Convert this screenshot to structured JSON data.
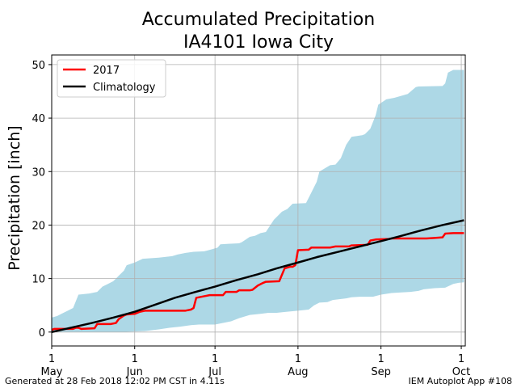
{
  "chart_data": {
    "type": "area",
    "title_line1": "Accumulated Precipitation",
    "title_line2": "IA4101 Iowa City",
    "ylabel": "Precipitation [inch]",
    "xlabel": "",
    "x_ticks": [
      {
        "day": 0,
        "day_label": "1",
        "month_label": "May"
      },
      {
        "day": 31,
        "day_label": "1",
        "month_label": "Jun"
      },
      {
        "day": 61,
        "day_label": "1",
        "month_label": "Jul"
      },
      {
        "day": 92,
        "day_label": "1",
        "month_label": "Aug"
      },
      {
        "day": 123,
        "day_label": "1",
        "month_label": "Sep"
      },
      {
        "day": 153,
        "day_label": "1",
        "month_label": "Oct"
      }
    ],
    "xlim": [
      0,
      154.5
    ],
    "ylim": [
      -2.6,
      51.8
    ],
    "y_ticks": [
      0,
      10,
      20,
      30,
      40,
      50
    ],
    "grid": true,
    "legend_position": "top-left",
    "series": [
      {
        "name": "2017",
        "color": "#ff0000",
        "points": [
          [
            0,
            0.4
          ],
          [
            1,
            0.6
          ],
          [
            8,
            0.6
          ],
          [
            9,
            0.8
          ],
          [
            10,
            0.8
          ],
          [
            11,
            0.6
          ],
          [
            16,
            0.7
          ],
          [
            17,
            1.5
          ],
          [
            22,
            1.5
          ],
          [
            24,
            1.7
          ],
          [
            25,
            2.4
          ],
          [
            27,
            3.1
          ],
          [
            28,
            3.3
          ],
          [
            31,
            3.4
          ],
          [
            33,
            3.8
          ],
          [
            35,
            4.0
          ],
          [
            40,
            4.0
          ],
          [
            45,
            4.0
          ],
          [
            50,
            4.0
          ],
          [
            52,
            4.2
          ],
          [
            46,
            4.0
          ],
          [
            53,
            4.5
          ],
          [
            54,
            6.4
          ],
          [
            57,
            6.7
          ],
          [
            59,
            6.9
          ],
          [
            64,
            6.9
          ],
          [
            65,
            7.5
          ],
          [
            69,
            7.5
          ],
          [
            70,
            7.8
          ],
          [
            74,
            7.8
          ],
          [
            75,
            7.9
          ],
          [
            77,
            8.7
          ],
          [
            79,
            9.2
          ],
          [
            80,
            9.4
          ],
          [
            85,
            9.5
          ],
          [
            87,
            11.9
          ],
          [
            89,
            12.2
          ],
          [
            90,
            12.2
          ],
          [
            91,
            12.5
          ],
          [
            92,
            15.3
          ],
          [
            96,
            15.4
          ],
          [
            97,
            15.8
          ],
          [
            104,
            15.8
          ],
          [
            106,
            16.0
          ],
          [
            111,
            16.0
          ],
          [
            112,
            16.2
          ],
          [
            118,
            16.3
          ],
          [
            119,
            17.1
          ],
          [
            121,
            17.3
          ],
          [
            126,
            17.4
          ],
          [
            127,
            17.5
          ],
          [
            140,
            17.5
          ],
          [
            143,
            17.6
          ],
          [
            146,
            17.7
          ],
          [
            147,
            18.4
          ],
          [
            150,
            18.5
          ],
          [
            154,
            18.5
          ]
        ]
      },
      {
        "name": "Climatology",
        "color": "#000000",
        "points": [
          [
            0,
            0.0
          ],
          [
            8,
            0.9
          ],
          [
            15,
            1.7
          ],
          [
            23,
            2.7
          ],
          [
            31,
            3.8
          ],
          [
            38,
            5.0
          ],
          [
            46,
            6.4
          ],
          [
            53,
            7.4
          ],
          [
            61,
            8.5
          ],
          [
            69,
            9.7
          ],
          [
            77,
            10.8
          ],
          [
            84,
            11.9
          ],
          [
            92,
            13.0
          ],
          [
            99,
            14.0
          ],
          [
            107,
            15.0
          ],
          [
            115,
            16.0
          ],
          [
            123,
            17.0
          ],
          [
            130,
            17.9
          ],
          [
            138,
            19.0
          ],
          [
            146,
            20.0
          ],
          [
            154,
            20.9
          ]
        ]
      }
    ],
    "range_band": {
      "color": "#add8e6",
      "upper": [
        [
          0,
          2.7
        ],
        [
          2,
          3.0
        ],
        [
          4,
          3.5
        ],
        [
          6,
          4.0
        ],
        [
          8,
          4.5
        ],
        [
          10,
          7.0
        ],
        [
          14,
          7.2
        ],
        [
          17,
          7.5
        ],
        [
          19,
          8.5
        ],
        [
          21,
          9.0
        ],
        [
          23,
          9.5
        ],
        [
          25,
          10.5
        ],
        [
          27,
          11.5
        ],
        [
          28,
          12.5
        ],
        [
          31,
          13.0
        ],
        [
          34,
          13.7
        ],
        [
          40,
          13.9
        ],
        [
          45,
          14.2
        ],
        [
          47,
          14.5
        ],
        [
          50,
          14.8
        ],
        [
          53,
          15.0
        ],
        [
          57,
          15.1
        ],
        [
          60,
          15.5
        ],
        [
          62,
          15.8
        ],
        [
          63,
          16.4
        ],
        [
          66,
          16.5
        ],
        [
          70,
          16.6
        ],
        [
          71,
          16.8
        ],
        [
          74,
          17.8
        ],
        [
          76,
          18.0
        ],
        [
          78,
          18.5
        ],
        [
          80,
          18.7
        ],
        [
          83,
          21.0
        ],
        [
          86,
          22.5
        ],
        [
          88,
          23.0
        ],
        [
          90,
          24.0
        ],
        [
          95,
          24.1
        ],
        [
          99,
          28.1
        ],
        [
          100,
          30.0
        ],
        [
          104,
          31.2
        ],
        [
          106,
          31.3
        ],
        [
          108,
          32.5
        ],
        [
          110,
          35.0
        ],
        [
          112,
          36.5
        ],
        [
          116,
          36.8
        ],
        [
          117,
          37.0
        ],
        [
          119,
          38.0
        ],
        [
          121,
          40.5
        ],
        [
          122,
          42.5
        ],
        [
          125,
          43.5
        ],
        [
          128,
          43.8
        ],
        [
          133,
          44.5
        ],
        [
          136,
          45.8
        ],
        [
          137,
          45.9
        ],
        [
          146,
          46.0
        ],
        [
          147,
          46.5
        ],
        [
          148,
          48.5
        ],
        [
          150,
          49.0
        ],
        [
          154,
          49.0
        ]
      ],
      "lower": [
        [
          0,
          0.0
        ],
        [
          10,
          0.0
        ],
        [
          18,
          0.0
        ],
        [
          26,
          0.0
        ],
        [
          35,
          0.2
        ],
        [
          40,
          0.5
        ],
        [
          44,
          0.8
        ],
        [
          48,
          1.0
        ],
        [
          52,
          1.3
        ],
        [
          55,
          1.4
        ],
        [
          61,
          1.4
        ],
        [
          67,
          2.0
        ],
        [
          70,
          2.6
        ],
        [
          74,
          3.2
        ],
        [
          78,
          3.4
        ],
        [
          81,
          3.6
        ],
        [
          84,
          3.6
        ],
        [
          88,
          3.8
        ],
        [
          92,
          4.0
        ],
        [
          96,
          4.2
        ],
        [
          98,
          5.0
        ],
        [
          100,
          5.5
        ],
        [
          103,
          5.6
        ],
        [
          105,
          6.0
        ],
        [
          110,
          6.3
        ],
        [
          112,
          6.5
        ],
        [
          115,
          6.6
        ],
        [
          120,
          6.6
        ],
        [
          123,
          7.0
        ],
        [
          127,
          7.3
        ],
        [
          130,
          7.4
        ],
        [
          134,
          7.5
        ],
        [
          137,
          7.7
        ],
        [
          139,
          8.0
        ],
        [
          143,
          8.2
        ],
        [
          147,
          8.3
        ],
        [
          150,
          9.0
        ],
        [
          152,
          9.2
        ],
        [
          154,
          9.3
        ]
      ]
    }
  },
  "footer": {
    "left": "Generated at 28 Feb 2018 12:02 PM CST in 4.11s",
    "right": "IEM Autoplot App #108"
  }
}
